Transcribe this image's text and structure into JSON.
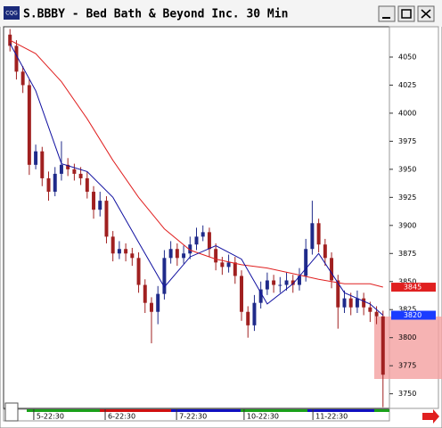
{
  "window": {
    "title": "S.BBBY - Bed Bath & Beyond Inc. 30 Min",
    "icon_label": "CQG"
  },
  "chart_data": {
    "type": "candlestick",
    "up_color": "#1f2a8a",
    "down_color": "#a02020",
    "open": [
      4070,
      4060,
      4037,
      4025,
      3954,
      3966,
      3942,
      3930,
      3946,
      3954,
      3950,
      3946,
      3942,
      3930,
      3914,
      3922,
      3890,
      3875,
      3879,
      3875,
      3871,
      3847,
      3831,
      3823,
      3839,
      3871,
      3879,
      3871,
      3875,
      3883,
      3890,
      3894,
      3879,
      3867,
      3863,
      3867,
      3855,
      3823,
      3811,
      3831,
      3843,
      3851,
      3847,
      3847,
      3851,
      3847,
      3855,
      3879,
      3902,
      3883,
      3871,
      3851,
      3827,
      3835,
      3827,
      3835,
      3827,
      3823,
      3819
    ],
    "high": [
      4075,
      4065,
      4042,
      4030,
      3972,
      3970,
      3948,
      3952,
      3975,
      3960,
      3955,
      3952,
      3948,
      3935,
      3930,
      3926,
      3895,
      3886,
      3884,
      3880,
      3876,
      3852,
      3836,
      3846,
      3878,
      3886,
      3884,
      3882,
      3890,
      3898,
      3900,
      3898,
      3884,
      3872,
      3874,
      3872,
      3860,
      3828,
      3838,
      3850,
      3858,
      3856,
      3854,
      3858,
      3856,
      3862,
      3888,
      3922,
      3906,
      3888,
      3876,
      3856,
      3842,
      3840,
      3842,
      3840,
      3832,
      3828,
      3824
    ],
    "low": [
      4055,
      4030,
      4018,
      3945,
      3950,
      3935,
      3922,
      3926,
      3940,
      3944,
      3940,
      3936,
      3924,
      3906,
      3908,
      3884,
      3868,
      3870,
      3868,
      3864,
      3840,
      3822,
      3795,
      3812,
      3834,
      3866,
      3864,
      3866,
      3870,
      3878,
      3886,
      3872,
      3860,
      3856,
      3858,
      3848,
      3815,
      3800,
      3806,
      3826,
      3838,
      3840,
      3840,
      3842,
      3840,
      3842,
      3850,
      3874,
      3876,
      3864,
      3844,
      3808,
      3822,
      3820,
      3822,
      3820,
      3814,
      3812,
      3738
    ],
    "close": [
      4060,
      4037,
      4025,
      3954,
      3966,
      3942,
      3930,
      3946,
      3954,
      3950,
      3946,
      3942,
      3930,
      3914,
      3922,
      3890,
      3875,
      3879,
      3875,
      3871,
      3847,
      3831,
      3823,
      3839,
      3871,
      3879,
      3871,
      3875,
      3883,
      3890,
      3894,
      3879,
      3867,
      3863,
      3867,
      3855,
      3823,
      3811,
      3831,
      3843,
      3851,
      3847,
      3847,
      3851,
      3847,
      3855,
      3879,
      3902,
      3883,
      3871,
      3851,
      3827,
      3835,
      3827,
      3835,
      3827,
      3823,
      3819,
      3767
    ],
    "lines": [
      {
        "color": "#e02020",
        "x": [
          0,
          4,
          8,
          12,
          16,
          20,
          24,
          28,
          32,
          36,
          40,
          44,
          48,
          52,
          56,
          58
        ],
        "values": [
          4065,
          4053,
          4028,
          3995,
          3958,
          3925,
          3897,
          3878,
          3870,
          3865,
          3862,
          3857,
          3852,
          3848,
          3848,
          3845
        ]
      },
      {
        "color": "#1010a0",
        "x": [
          0,
          4,
          8,
          12,
          16,
          20,
          24,
          28,
          32,
          36,
          40,
          44,
          48,
          52,
          56,
          58
        ],
        "values": [
          4062,
          4020,
          3955,
          3948,
          3925,
          3885,
          3845,
          3872,
          3882,
          3870,
          3830,
          3848,
          3875,
          3840,
          3830,
          3820
        ]
      }
    ],
    "markers": [
      {
        "value": 3845,
        "color": "#e02020"
      },
      {
        "value": 3820,
        "color": "#1a3cff"
      }
    ],
    "xlim": [
      -1,
      59
    ],
    "xticks": [
      {
        "value": 3.7,
        "label": "5-22:30"
      },
      {
        "value": 14.8,
        "label": "6-22:30"
      },
      {
        "value": 25.9,
        "label": "7-22:30"
      },
      {
        "value": 36.4,
        "label": "10-22:30"
      },
      {
        "value": 47.1,
        "label": "11-22:30"
      }
    ],
    "ylim": [
      3737,
      4077
    ],
    "yticks": [
      3750,
      3775,
      3800,
      3825,
      3850,
      3875,
      3900,
      3925,
      3950,
      3975,
      4000,
      4025,
      4050
    ],
    "grid": false
  }
}
